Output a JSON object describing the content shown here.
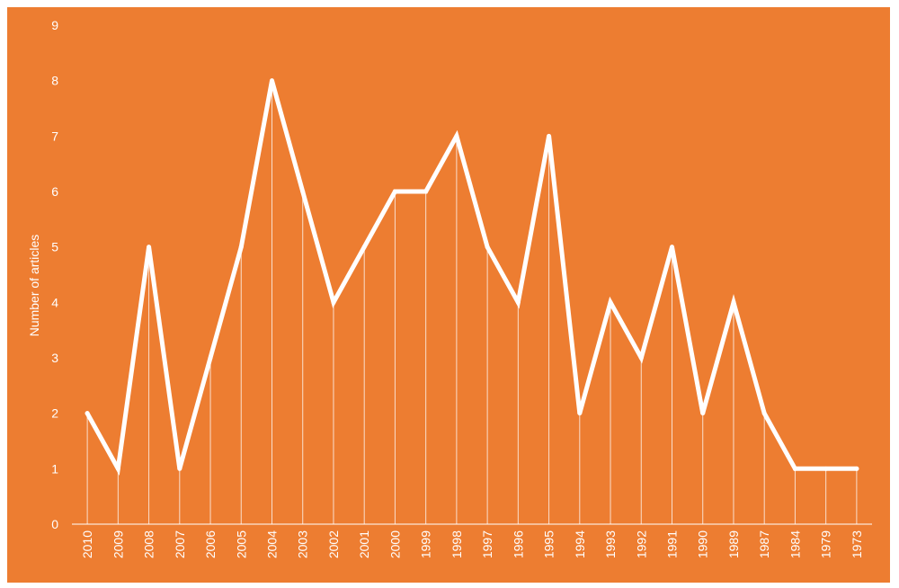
{
  "colors": {
    "background": "#ED7D31",
    "line": "#FFFFFF",
    "text": "#FFFFFF",
    "page": "#FFFFFF"
  },
  "chart_data": {
    "type": "line",
    "title": "",
    "xlabel": "",
    "ylabel": "Number of articles",
    "ylim": [
      0,
      9
    ],
    "yticks": [
      0,
      1,
      2,
      3,
      4,
      5,
      6,
      7,
      8,
      9
    ],
    "grid": false,
    "drop_lines": true,
    "categories": [
      "2010",
      "2009",
      "2008",
      "2007",
      "2006",
      "2005",
      "2004",
      "2003",
      "2002",
      "2001",
      "2000",
      "1999",
      "1998",
      "1997",
      "1996",
      "1995",
      "1994",
      "1993",
      "1992",
      "1991",
      "1990",
      "1989",
      "1987",
      "1984",
      "1979",
      "1973"
    ],
    "series": [
      {
        "values": [
          2,
          1,
          5,
          1,
          3,
          5,
          8,
          6,
          4,
          5,
          6,
          6,
          7,
          5,
          4,
          7,
          2,
          4,
          3,
          5,
          2,
          4,
          2,
          1,
          1,
          1
        ]
      }
    ]
  }
}
